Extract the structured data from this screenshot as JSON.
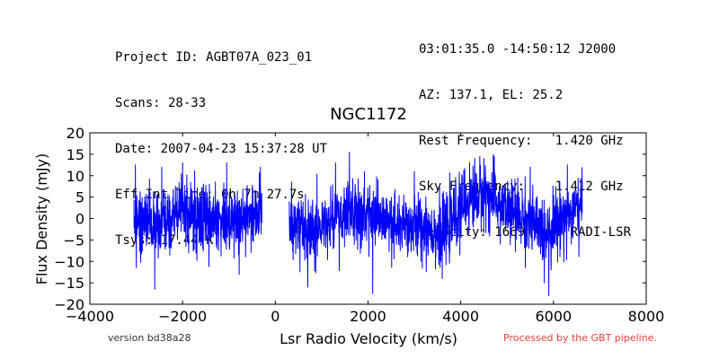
{
  "header": {
    "left": [
      "Project ID: AGBT07A_023_01",
      "Scans: 28-33",
      "Date: 2007-04-23 15:37:28 UT",
      "Eff Int Time: 0h 7m 27.7s",
      "Tsys: 17.44 K"
    ],
    "right": [
      "03:01:35.0 -14:50:12 J2000",
      "AZ: 137.1, EL: 25.2",
      "Rest Frequency:   1.420 GHz",
      "Sky Frequency:    1.412 GHz",
      "Velocity: 1669 km/s RADI-LSR"
    ]
  },
  "footer": {
    "version": "version bd38a28",
    "pipeline": "Processed by the GBT pipeline."
  },
  "chart_data": {
    "type": "line",
    "title": "NGC1172",
    "xlabel": "Lsr Radio Velocity (km/s)",
    "ylabel": "Flux Density (mJy)",
    "xlim": [
      -4000,
      8000
    ],
    "ylim": [
      -20,
      20
    ],
    "xticks": [
      -4000,
      -2000,
      0,
      2000,
      4000,
      6000,
      8000
    ],
    "yticks": [
      -20,
      -15,
      -10,
      -5,
      0,
      5,
      10,
      15,
      20
    ],
    "xtick_labels": [
      "−4000",
      "−2000",
      "0",
      "2000",
      "4000",
      "6000",
      "8000"
    ],
    "ytick_labels": [
      "−20",
      "−15",
      "−10",
      "−5",
      "0",
      "5",
      "10",
      "15",
      "20"
    ],
    "grid": false,
    "line_color": "#0000ff",
    "series": [
      {
        "segments": [
          {
            "x_range": [
              -3050,
              -290
            ],
            "baseline": [
              [
                -3050,
                0
              ],
              [
                -2500,
                -2
              ],
              [
                -2000,
                2
              ],
              [
                -1500,
                0
              ],
              [
                -1000,
                -1
              ],
              [
                -500,
                1
              ],
              [
                -290,
                2
              ]
            ],
            "noise": 3.8,
            "points": 700,
            "extremes": [
              [
                -3020,
                12.5
              ],
              [
                -3000,
                -11.5
              ],
              [
                -2600,
                -16.5
              ],
              [
                -2450,
                12
              ],
              [
                -2000,
                13
              ],
              [
                -1050,
                13
              ],
              [
                -780,
                -13
              ],
              [
                -320,
                12
              ]
            ]
          },
          {
            "x_range": [
              300,
              6620
            ],
            "baseline": [
              [
                300,
                -1
              ],
              [
                1000,
                -2
              ],
              [
                1600,
                1
              ],
              [
                2100,
                0
              ],
              [
                2600,
                -2
              ],
              [
                3300,
                -2
              ],
              [
                3600,
                -4
              ],
              [
                4100,
                4
              ],
              [
                4500,
                6
              ],
              [
                5000,
                2
              ],
              [
                5400,
                0
              ],
              [
                5800,
                -3
              ],
              [
                6300,
                1
              ],
              [
                6620,
                2
              ]
            ],
            "noise": 3.8,
            "points": 1500,
            "extremes": [
              [
                350,
                8.5
              ],
              [
                700,
                -16
              ],
              [
                1300,
                13
              ],
              [
                1600,
                15.5
              ],
              [
                2100,
                -17.5
              ],
              [
                3000,
                11
              ],
              [
                3600,
                -14
              ],
              [
                4300,
                14
              ],
              [
                4500,
                14
              ],
              [
                5500,
                12
              ],
              [
                5800,
                -15
              ],
              [
                5900,
                -18
              ],
              [
                6300,
                12.5
              ]
            ]
          }
        ]
      }
    ]
  }
}
